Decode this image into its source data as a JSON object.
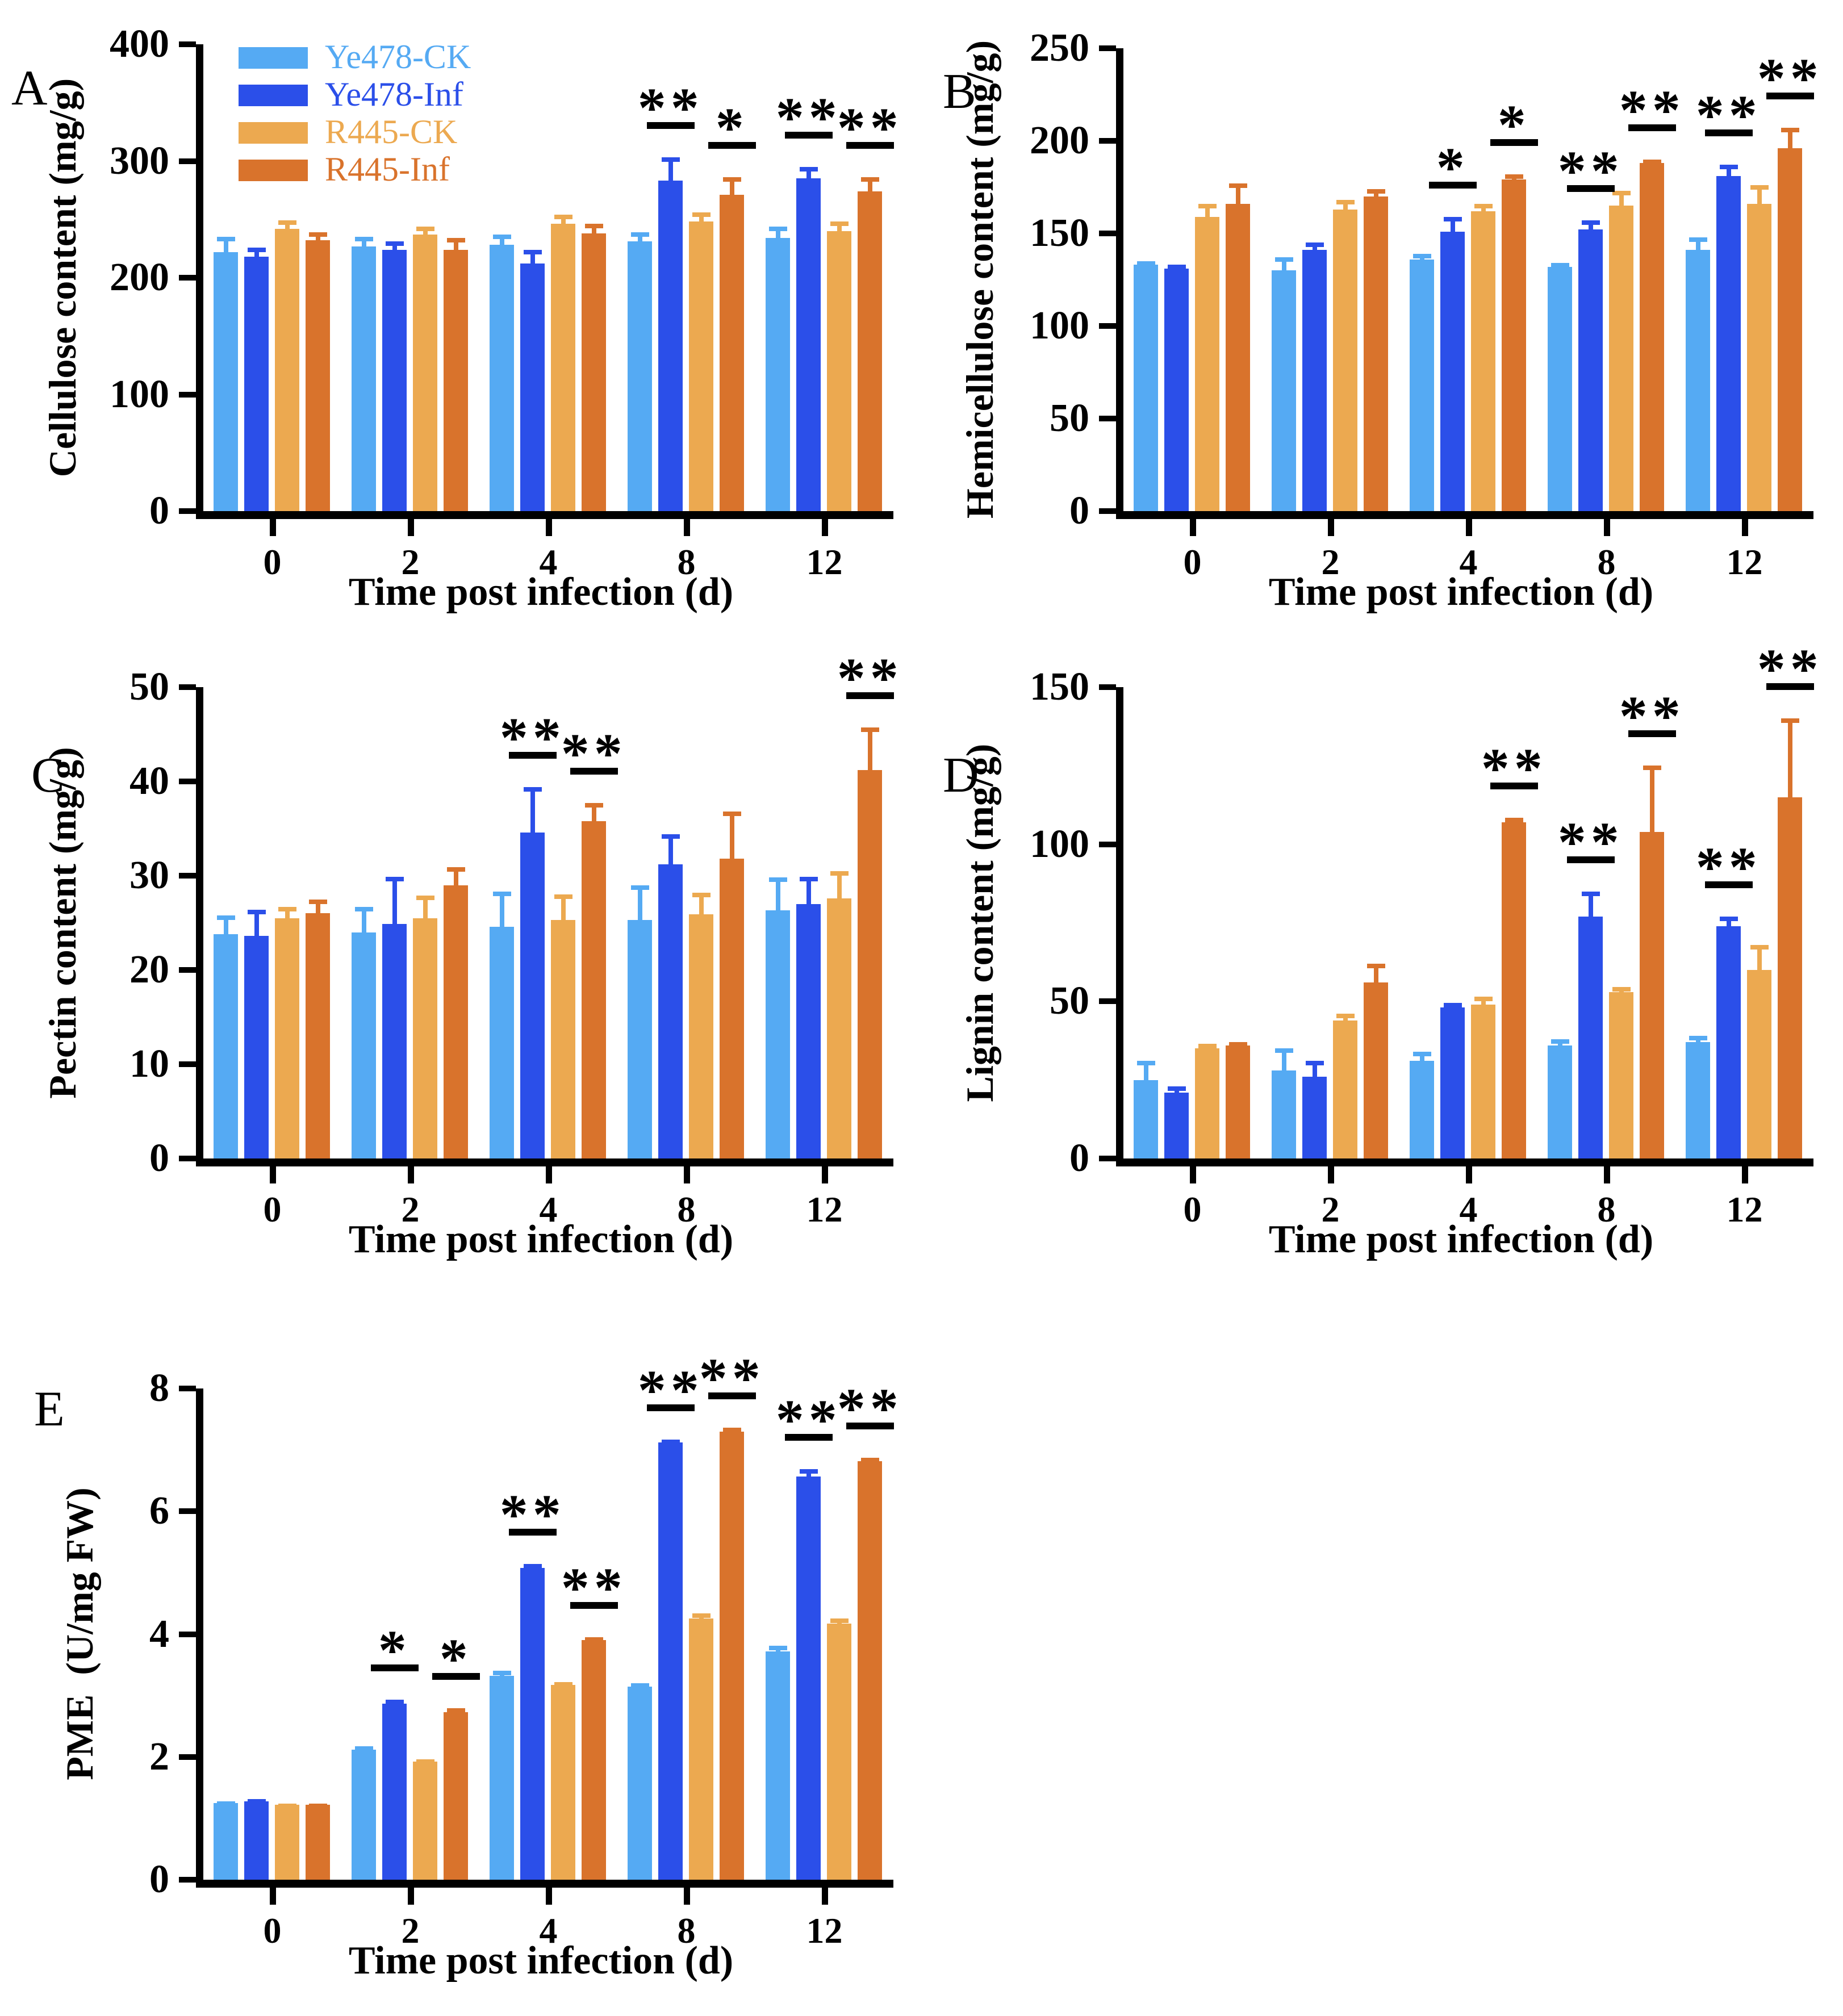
{
  "figure": {
    "background": "#ffffff",
    "panels": [
      "A",
      "B",
      "C",
      "D",
      "E"
    ]
  },
  "colors": {
    "ye478_ck": "#55AAF3",
    "ye478_inf": "#2B4FE9",
    "r445_ck": "#ECA950",
    "r445_inf": "#D9732C",
    "axis": "#000000"
  },
  "legend": {
    "items": [
      "Ye478-CK",
      "Ye478-Inf",
      "R445-CK",
      "R445-Inf"
    ]
  },
  "chart_data": [
    {
      "panel": "A",
      "type": "bar",
      "title": "",
      "ylabel": "Cellulose content (mg/g)",
      "xlabel": "Time post infection (d)",
      "ylim": [
        0,
        400
      ],
      "yticks": [
        0,
        100,
        200,
        300,
        400
      ],
      "categories": [
        "0",
        "2",
        "4",
        "8",
        "12"
      ],
      "legend_visible": true,
      "legend_position": "top-left",
      "series": [
        {
          "name": "Ye478-CK",
          "color": "#55AAF3",
          "values": [
            222,
            227,
            228,
            231,
            234
          ],
          "errors": [
            13,
            8,
            9,
            8,
            10
          ]
        },
        {
          "name": "Ye478-Inf",
          "color": "#2B4FE9",
          "values": [
            218,
            224,
            212,
            283,
            285
          ],
          "errors": [
            8,
            7,
            12,
            20,
            10
          ]
        },
        {
          "name": "R445-CK",
          "color": "#ECA950",
          "values": [
            242,
            237,
            246,
            248,
            240
          ],
          "errors": [
            7,
            7,
            8,
            8,
            8
          ]
        },
        {
          "name": "R445-Inf",
          "color": "#D9732C",
          "values": [
            232,
            224,
            238,
            271,
            274
          ],
          "errors": [
            7,
            10,
            8,
            15,
            12
          ]
        }
      ],
      "significance": [
        {
          "category": "8",
          "series": "Ye478-Inf",
          "stars": "**"
        },
        {
          "category": "8",
          "series": "R445-Inf",
          "stars": "*"
        },
        {
          "category": "12",
          "series": "Ye478-Inf",
          "stars": "**"
        },
        {
          "category": "12",
          "series": "R445-Inf",
          "stars": "**"
        }
      ]
    },
    {
      "panel": "B",
      "type": "bar",
      "title": "",
      "ylabel": "Hemicellulose content (mg/g)",
      "xlabel": "Time post infection (d)",
      "ylim": [
        0,
        250
      ],
      "yticks": [
        0,
        50,
        100,
        150,
        200,
        250
      ],
      "categories": [
        "0",
        "2",
        "4",
        "8",
        "12"
      ],
      "legend_visible": false,
      "series": [
        {
          "name": "Ye478-CK",
          "color": "#55AAF3",
          "values": [
            133,
            130,
            136,
            132,
            141
          ],
          "errors": [
            2,
            7,
            3,
            2,
            7
          ]
        },
        {
          "name": "Ye478-Inf",
          "color": "#2B4FE9",
          "values": [
            131,
            141,
            151,
            152,
            181
          ],
          "errors": [
            2,
            4,
            8,
            5,
            6
          ]
        },
        {
          "name": "R445-CK",
          "color": "#ECA950",
          "values": [
            159,
            163,
            162,
            165,
            166
          ],
          "errors": [
            7,
            5,
            4,
            8,
            10
          ]
        },
        {
          "name": "R445-Inf",
          "color": "#D9732C",
          "values": [
            166,
            170,
            179,
            188,
            196
          ],
          "errors": [
            11,
            4,
            3,
            2,
            11
          ]
        }
      ],
      "significance": [
        {
          "category": "4",
          "series": "Ye478-Inf",
          "stars": "*"
        },
        {
          "category": "4",
          "series": "R445-Inf",
          "stars": "*"
        },
        {
          "category": "8",
          "series": "Ye478-Inf",
          "stars": "**"
        },
        {
          "category": "8",
          "series": "R445-Inf",
          "stars": "**"
        },
        {
          "category": "12",
          "series": "Ye478-Inf",
          "stars": "**"
        },
        {
          "category": "12",
          "series": "R445-Inf",
          "stars": "**"
        }
      ]
    },
    {
      "panel": "C",
      "type": "bar",
      "title": "",
      "ylabel": "Pectin content (mg/g)",
      "xlabel": "Time post infection (d)",
      "ylim": [
        0,
        50
      ],
      "yticks": [
        0,
        10,
        20,
        30,
        40,
        50
      ],
      "categories": [
        "0",
        "2",
        "4",
        "8",
        "12"
      ],
      "legend_visible": false,
      "series": [
        {
          "name": "Ye478-CK",
          "color": "#55AAF3",
          "values": [
            23.8,
            24.0,
            24.6,
            25.3,
            26.3
          ],
          "errors": [
            2.0,
            2.7,
            3.7,
            3.7,
            3.5
          ]
        },
        {
          "name": "Ye478-Inf",
          "color": "#2B4FE9",
          "values": [
            23.6,
            24.9,
            34.6,
            31.2,
            27.0
          ],
          "errors": [
            2.8,
            5.0,
            4.8,
            3.2,
            2.9
          ]
        },
        {
          "name": "R445-CK",
          "color": "#ECA950",
          "values": [
            25.5,
            25.5,
            25.3,
            25.9,
            27.6
          ],
          "errors": [
            1.2,
            2.4,
            2.7,
            2.3,
            2.9
          ]
        },
        {
          "name": "R445-Inf",
          "color": "#D9732C",
          "values": [
            26.0,
            29.0,
            35.8,
            31.8,
            41.2
          ],
          "errors": [
            1.5,
            1.9,
            1.9,
            5.0,
            4.5
          ]
        }
      ],
      "significance": [
        {
          "category": "4",
          "series": "Ye478-Inf",
          "stars": "**"
        },
        {
          "category": "4",
          "series": "R445-Inf",
          "stars": "**"
        },
        {
          "category": "12",
          "series": "R445-Inf",
          "stars": "**"
        }
      ]
    },
    {
      "panel": "D",
      "type": "bar",
      "title": "",
      "ylabel": "Lignin content (mg/g)",
      "xlabel": "Time post infection (d)",
      "ylim": [
        0,
        150
      ],
      "yticks": [
        0,
        50,
        100,
        150
      ],
      "categories": [
        "0",
        "2",
        "4",
        "8",
        "12"
      ],
      "legend_visible": false,
      "series": [
        {
          "name": "Ye478-CK",
          "color": "#55AAF3",
          "values": [
            25,
            28,
            31,
            36,
            37
          ],
          "errors": [
            6,
            7,
            3,
            2,
            2
          ]
        },
        {
          "name": "Ye478-Inf",
          "color": "#2B4FE9",
          "values": [
            21,
            26,
            48,
            77,
            74
          ],
          "errors": [
            2,
            5,
            1.5,
            8,
            3
          ]
        },
        {
          "name": "R445-CK",
          "color": "#ECA950",
          "values": [
            35,
            44,
            49,
            53,
            60
          ],
          "errors": [
            1.5,
            2,
            2.5,
            1.5,
            8
          ]
        },
        {
          "name": "R445-Inf",
          "color": "#D9732C",
          "values": [
            36,
            56,
            107,
            104,
            115
          ],
          "errors": [
            1,
            6,
            1.5,
            21,
            25
          ]
        }
      ],
      "significance": [
        {
          "category": "4",
          "series": "R445-Inf",
          "stars": "**"
        },
        {
          "category": "8",
          "series": "Ye478-Inf",
          "stars": "**"
        },
        {
          "category": "8",
          "series": "R445-Inf",
          "stars": "**"
        },
        {
          "category": "12",
          "series": "Ye478-Inf",
          "stars": "**"
        },
        {
          "category": "12",
          "series": "R445-Inf",
          "stars": "**"
        }
      ]
    },
    {
      "panel": "E",
      "type": "bar",
      "title": "",
      "ylabel": "PME  (U/mg FW)",
      "xlabel": "Time post infection (d)",
      "ylim": [
        0,
        8
      ],
      "yticks": [
        0,
        2,
        4,
        6,
        8
      ],
      "categories": [
        "0",
        "2",
        "4",
        "8",
        "12"
      ],
      "legend_visible": false,
      "series": [
        {
          "name": "Ye478-CK",
          "color": "#55AAF3",
          "values": [
            1.25,
            2.12,
            3.32,
            3.14,
            3.72
          ],
          "errors": [
            0.03,
            0.05,
            0.08,
            0.06,
            0.09
          ]
        },
        {
          "name": "Ye478-Inf",
          "color": "#2B4FE9",
          "values": [
            1.28,
            2.87,
            5.08,
            7.12,
            6.57
          ],
          "errors": [
            0.03,
            0.06,
            0.06,
            0.05,
            0.12
          ]
        },
        {
          "name": "R445-CK",
          "color": "#ECA950",
          "values": [
            1.22,
            1.92,
            3.17,
            4.25,
            4.17
          ],
          "errors": [
            0.02,
            0.04,
            0.05,
            0.09,
            0.08
          ]
        },
        {
          "name": "R445-Inf",
          "color": "#D9732C",
          "values": [
            1.22,
            2.73,
            3.9,
            7.3,
            6.82
          ],
          "errors": [
            0.02,
            0.06,
            0.05,
            0.06,
            0.05
          ]
        }
      ],
      "significance": [
        {
          "category": "2",
          "series": "Ye478-Inf",
          "stars": "*"
        },
        {
          "category": "2",
          "series": "R445-Inf",
          "stars": "*"
        },
        {
          "category": "4",
          "series": "Ye478-Inf",
          "stars": "**"
        },
        {
          "category": "4",
          "series": "R445-Inf",
          "stars": "**"
        },
        {
          "category": "8",
          "series": "Ye478-Inf",
          "stars": "**"
        },
        {
          "category": "8",
          "series": "R445-Inf",
          "stars": "**"
        },
        {
          "category": "12",
          "series": "Ye478-Inf",
          "stars": "**"
        },
        {
          "category": "12",
          "series": "R445-Inf",
          "stars": "**"
        }
      ]
    }
  ]
}
